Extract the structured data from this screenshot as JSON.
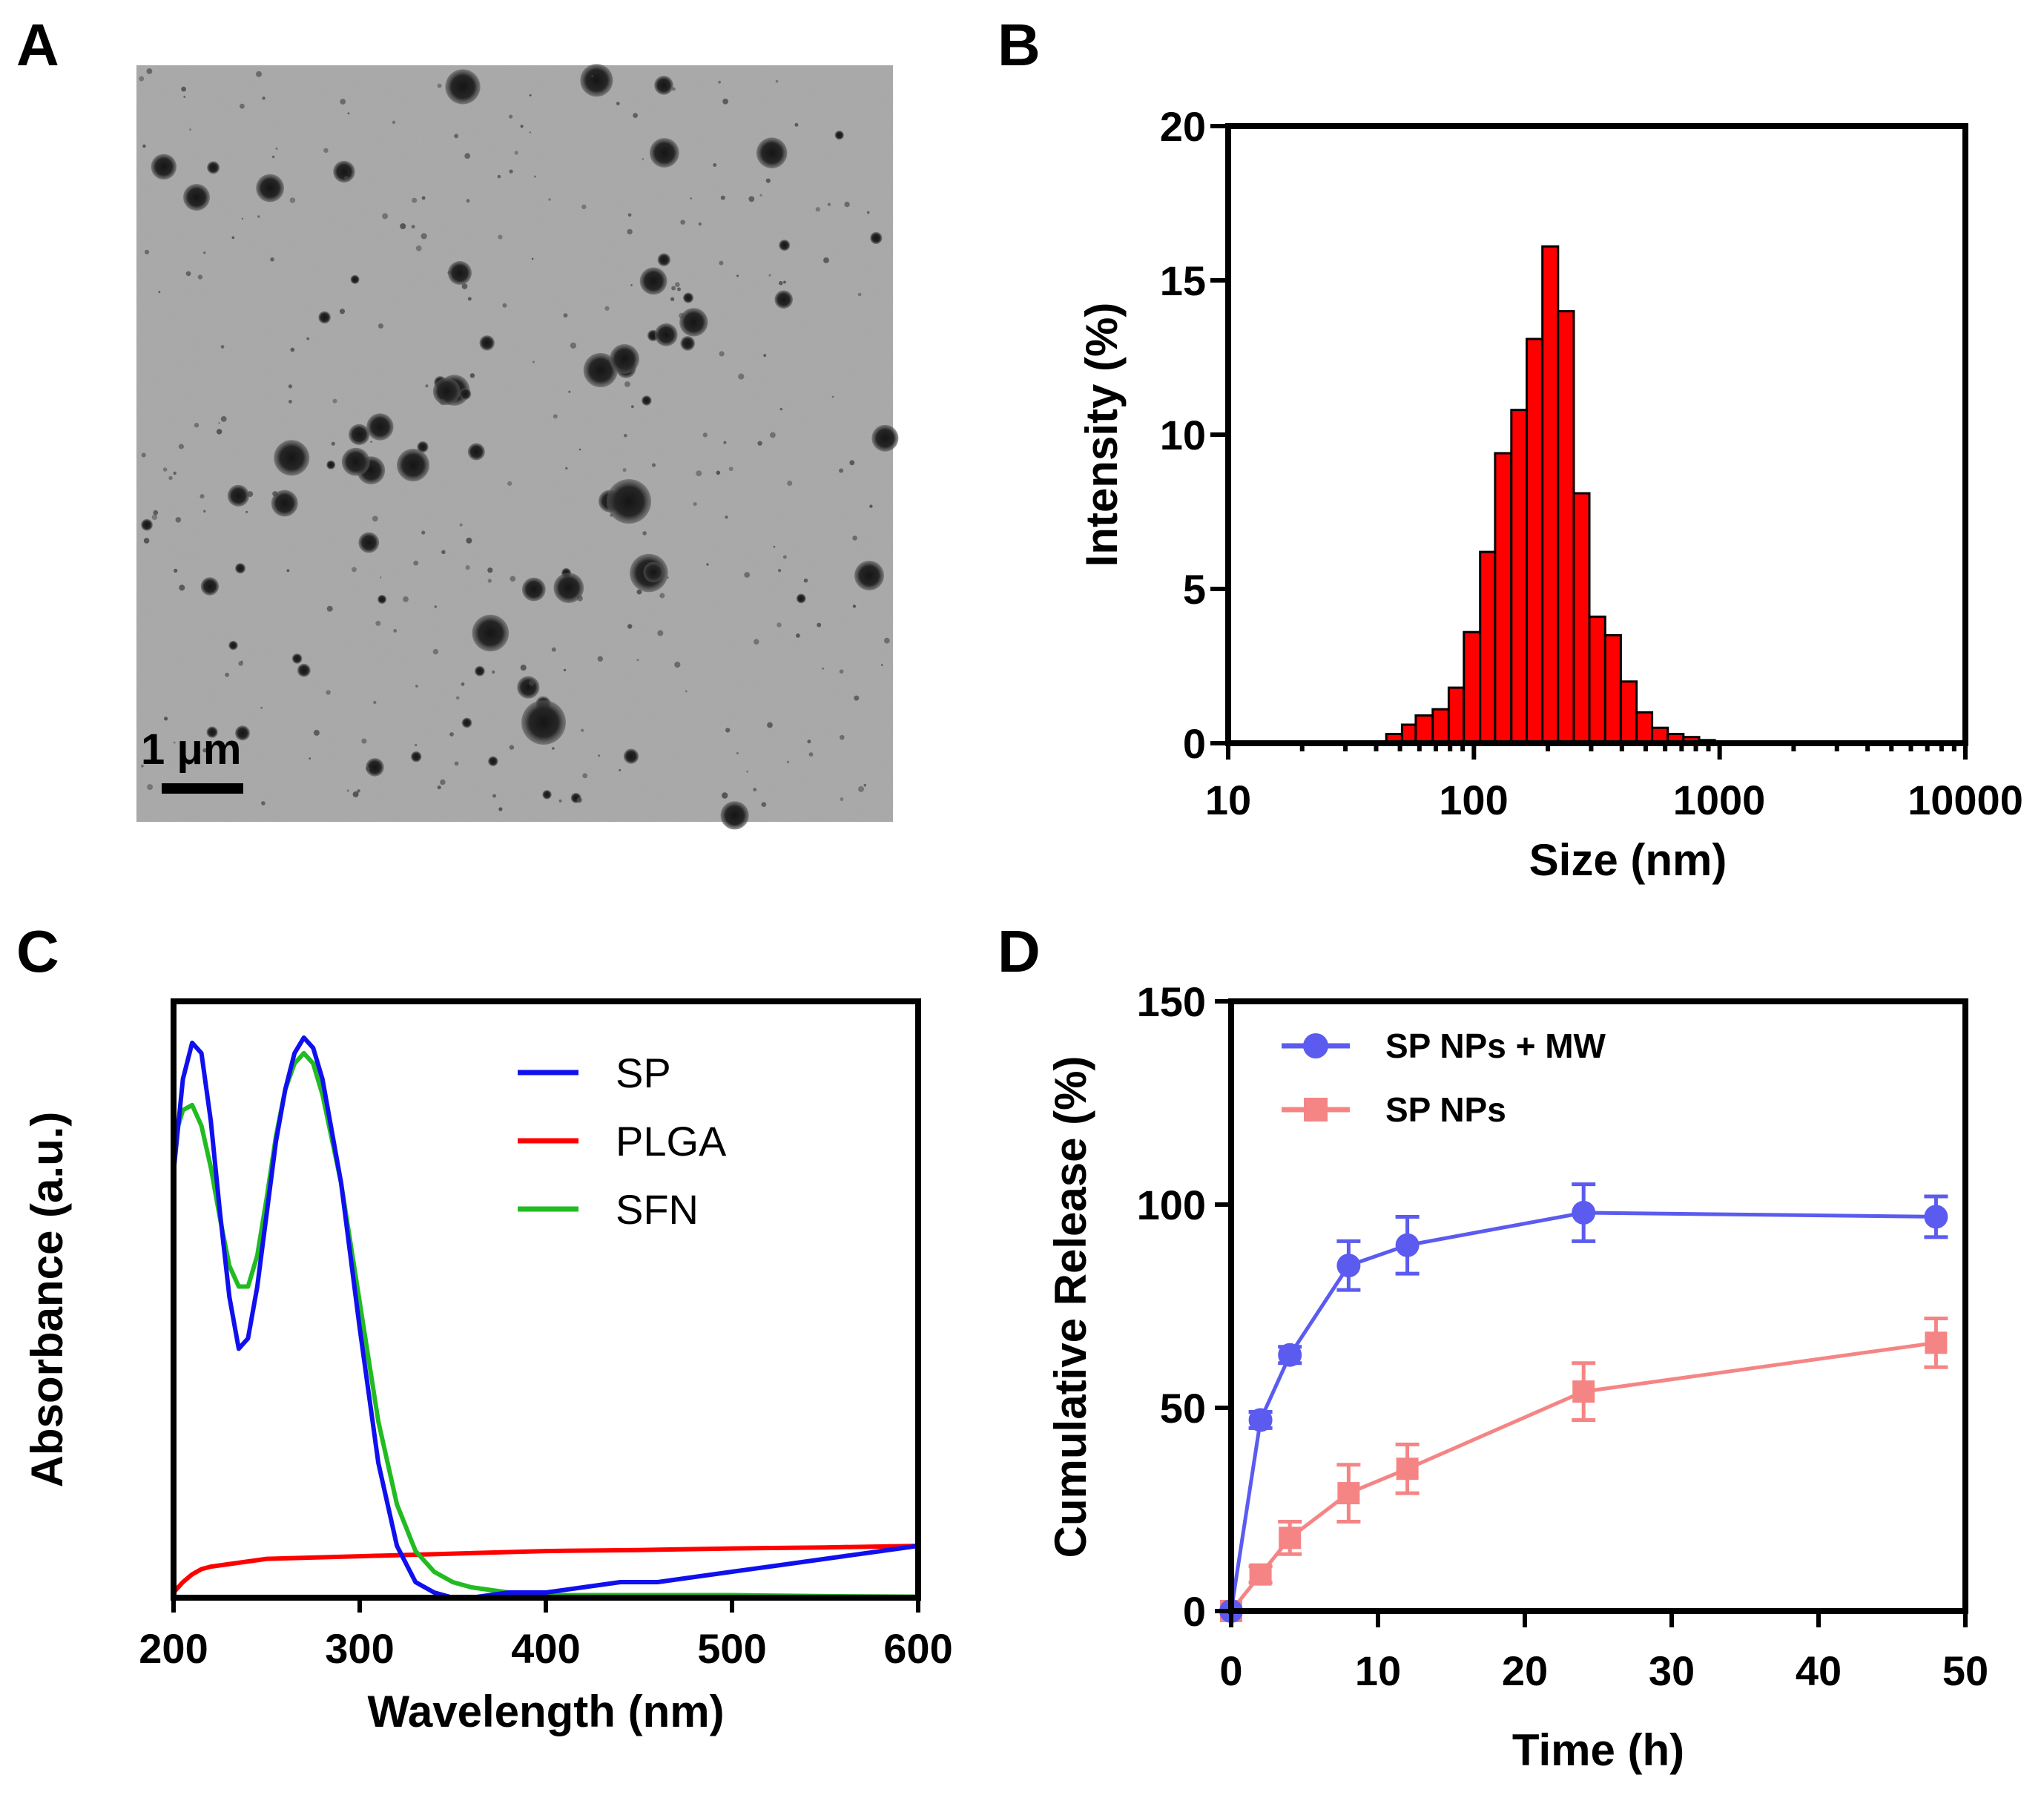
{
  "panels": {
    "a": {
      "letter": "A",
      "scale_bar_label": "1 μm",
      "scale_bar_length_um": 1
    },
    "b": {
      "letter": "B"
    },
    "c": {
      "letter": "C"
    },
    "d": {
      "letter": "D"
    }
  },
  "chart_data": [
    {
      "id": "b",
      "type": "bar",
      "title": "",
      "xlabel": "Size (nm)",
      "ylabel": "Intensity (%)",
      "xscale": "log",
      "xlim": [
        10,
        10000
      ],
      "ylim": [
        0,
        20
      ],
      "x_ticks": [
        10,
        100,
        1000,
        10000
      ],
      "x_tick_labels": [
        "10",
        "100",
        "1000",
        "10000"
      ],
      "y_ticks": [
        0,
        5,
        10,
        15,
        20
      ],
      "y_tick_labels": [
        "0",
        "5",
        "10",
        "15",
        "20"
      ],
      "bar_color": "#ff0000",
      "bin_edges": [
        44,
        51,
        58,
        68,
        79,
        91,
        106,
        122,
        142,
        164,
        190,
        220,
        255,
        295,
        342,
        396,
        459,
        531,
        615,
        712,
        825,
        955
      ],
      "values": [
        0.3,
        0.6,
        0.9,
        1.1,
        1.8,
        3.6,
        6.2,
        9.4,
        10.8,
        13.1,
        16.1,
        14.0,
        8.1,
        4.1,
        3.5,
        2.0,
        1.0,
        0.5,
        0.3,
        0.2,
        0.1
      ]
    },
    {
      "id": "c",
      "type": "line",
      "title": "",
      "xlabel": "Wavelength (nm)",
      "ylabel": "Absorbance (a.u.)",
      "xlim": [
        200,
        600
      ],
      "ylim": [
        0,
        1.15
      ],
      "x_ticks": [
        200,
        300,
        400,
        500,
        600
      ],
      "x_tick_labels": [
        "200",
        "300",
        "400",
        "500",
        "600"
      ],
      "y_tick_labels": [],
      "legend_position": "top-right",
      "series": [
        {
          "name": "SP",
          "color": "#1010ee",
          "x": [
            200,
            205,
            210,
            215,
            220,
            225,
            230,
            235,
            240,
            245,
            250,
            255,
            260,
            265,
            270,
            275,
            280,
            290,
            300,
            310,
            320,
            330,
            340,
            350,
            360,
            380,
            400,
            420,
            440,
            460,
            480,
            500,
            520,
            540,
            560,
            580,
            600
          ],
          "y": [
            0.82,
            1.0,
            1.07,
            1.05,
            0.92,
            0.74,
            0.58,
            0.48,
            0.5,
            0.6,
            0.74,
            0.88,
            0.98,
            1.05,
            1.08,
            1.06,
            1.0,
            0.8,
            0.52,
            0.26,
            0.1,
            0.03,
            0.01,
            0.0,
            0.0,
            0.01,
            0.01,
            0.02,
            0.03,
            0.03,
            0.04,
            0.05,
            0.06,
            0.07,
            0.08,
            0.09,
            0.1
          ]
        },
        {
          "name": "PLGA",
          "color": "#ff0000",
          "x": [
            200,
            205,
            210,
            215,
            220,
            230,
            250,
            300,
            350,
            400,
            450,
            500,
            550,
            600
          ],
          "y": [
            0.01,
            0.03,
            0.045,
            0.055,
            0.06,
            0.065,
            0.075,
            0.08,
            0.085,
            0.09,
            0.092,
            0.095,
            0.097,
            0.1
          ]
        },
        {
          "name": "SFN",
          "color": "#22bb22",
          "x": [
            200,
            205,
            210,
            215,
            220,
            225,
            230,
            235,
            240,
            245,
            250,
            255,
            260,
            265,
            270,
            275,
            280,
            290,
            300,
            310,
            320,
            330,
            340,
            350,
            360,
            380,
            400,
            450,
            500,
            550,
            600
          ],
          "y": [
            0.88,
            0.94,
            0.95,
            0.91,
            0.83,
            0.73,
            0.64,
            0.6,
            0.6,
            0.66,
            0.77,
            0.89,
            0.98,
            1.03,
            1.05,
            1.03,
            0.97,
            0.8,
            0.57,
            0.34,
            0.18,
            0.09,
            0.05,
            0.03,
            0.02,
            0.01,
            0.005,
            0.005,
            0.005,
            0.003,
            0.002
          ]
        }
      ]
    },
    {
      "id": "d",
      "type": "line",
      "title": "",
      "xlabel": "Time (h)",
      "ylabel": "Cumulative Release (%)",
      "xlim": [
        0,
        50
      ],
      "ylim": [
        0,
        150
      ],
      "x_ticks": [
        0,
        10,
        20,
        30,
        40,
        50
      ],
      "x_tick_labels": [
        "0",
        "10",
        "20",
        "30",
        "40",
        "50"
      ],
      "y_ticks": [
        0,
        50,
        100,
        150
      ],
      "y_tick_labels": [
        "0",
        "50",
        "100",
        "150"
      ],
      "legend_position": "top-left",
      "series": [
        {
          "name": "SP NPs + MW",
          "color": "#5b5bf0",
          "marker": "circle",
          "x": [
            0,
            2,
            4,
            8,
            12,
            24,
            48
          ],
          "y": [
            0,
            47,
            63,
            85,
            90,
            98,
            97
          ],
          "err": [
            0,
            2,
            2,
            6,
            7,
            7,
            5
          ]
        },
        {
          "name": "SP NPs",
          "color": "#f58585",
          "marker": "square",
          "x": [
            0,
            2,
            4,
            8,
            12,
            24,
            48
          ],
          "y": [
            0,
            9,
            18,
            29,
            35,
            54,
            66
          ],
          "err": [
            0,
            2,
            4,
            7,
            6,
            7,
            6
          ]
        }
      ]
    }
  ]
}
